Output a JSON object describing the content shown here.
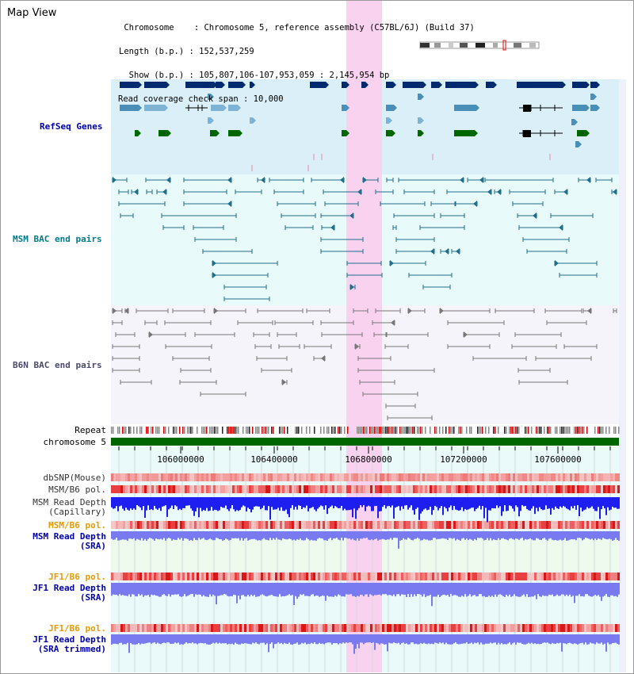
{
  "app": {
    "title": "Map View"
  },
  "info": {
    "chromosome_line": " Chromosome    : Chromosome 5, reference assembly (C57BL/6J) (Build 37)",
    "length_line": "Length (b.p.) : 152,537,259",
    "show_line": "  Show (b.p.) : 105,807,106-107,953,059 : 2,145,954 bp",
    "coverage_line": "Read coverage check span : 10,000"
  },
  "tracks": {
    "refseq": "RefSeq Genes",
    "msm_bac": "MSM BAC end pairs",
    "b6n_bac": "B6N BAC end pairs",
    "repeat": "Repeat",
    "chromosome": "chromosome 5",
    "dbsnp": "dbSNP(Mouse)",
    "msm_b6_pol_1": "MSM/B6 pol.",
    "msm_depth_cap_1": "MSM Read Depth",
    "msm_depth_cap_2": "(Capillary)",
    "msm_b6_pol_2": "MSM/B6 pol.",
    "msm_depth_sra_1": "MSM Read Depth",
    "msm_depth_sra_2": "(SRA)",
    "jf1_b6_pol_1": "JF1/B6 pol.",
    "jf1_depth_sra_1": "JF1 Read Depth",
    "jf1_depth_sra_2": "(SRA)",
    "jf1_b6_pol_2": "JF1/B6 pol.",
    "jf1_depth_trim_1": "JF1 Read Depth",
    "jf1_depth_trim_2": "(SRA trimmed)"
  },
  "axis": {
    "ticks": [
      "106000000",
      "106400000",
      "106800000",
      "107200000",
      "107600000"
    ]
  },
  "colors": {
    "refseq_bg": "#dbeff9",
    "msm_bg": "#e8fafa",
    "b6n_bg": "#f4f4fa",
    "highlight": "#f9d2f0",
    "gene_dark": "#002a6e",
    "gene_mid": "#4a8fb8",
    "gene_light": "#7fb3d3",
    "gene_green": "#006600",
    "msm_pair": "#1f6f8b",
    "b6n_pair": "#777777",
    "chromosome_bar": "#006600",
    "label_blue": "#0000aa",
    "label_teal": "#007b8a",
    "label_orange": "#e69a00",
    "label_gray": "#333333",
    "depth_dark": "#1e1ef0",
    "depth_light": "#7a7af0"
  }
}
